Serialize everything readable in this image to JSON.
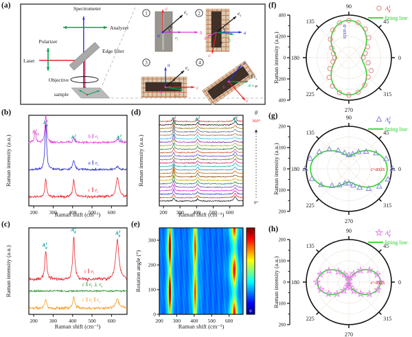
{
  "figure": {
    "panel_labels": {
      "a": "(a)",
      "b": "(b)",
      "c": "(c)",
      "d": "(d)",
      "e": "(e)",
      "f": "(f)",
      "g": "(g)",
      "h": "(h)"
    }
  },
  "axes_text": {
    "raman_shift": "Raman shift (cm⁻¹)",
    "raman_intensity": "Raman intensity (a.u.)",
    "rotation_angle": "Rotation angle (°)"
  },
  "panel_a": {
    "labels": {
      "spectrometer": "Spectrometer",
      "analyzer": "Analyzer",
      "polarizer": "Polarizer",
      "laser": "Laser",
      "edge_filter": "Edge filter",
      "objective": "Objective",
      "sample": "sample"
    },
    "inset_numbers": [
      "1",
      "2",
      "3",
      "4"
    ],
    "symbols": {
      "a": "a",
      "b": "b",
      "c": "c",
      "e": "e",
      "i": "i",
      "s": "s",
      "phi": "φ",
      "theta": "θ",
      "parallel": "∥",
      "equals": "="
    },
    "axis_colors": {
      "a": "#2a2ae0",
      "b": "#e236d8",
      "c": "#ee2222",
      "ei": "#00a551",
      "es": "#111111"
    }
  },
  "chart_data": [
    {
      "id": "b",
      "type": "line",
      "xlabel": "Raman shift (cm⁻¹)",
      "ylabel": "Raman intensity (a.u.)",
      "xlim": [
        175,
        680
      ],
      "xticks": [
        200,
        300,
        400,
        500,
        600
      ],
      "peak_labels": [
        {
          "x": 207,
          "y": 0.8,
          "color": "#e857c8",
          "segs": [
            {
              "t": "B",
              "i": 1
            },
            {
              "sup": "1",
              "sub": "3g"
            }
          ]
        },
        {
          "x": 262,
          "y": 0.9,
          "color": "#009393",
          "segs": [
            {
              "t": "A",
              "i": 1
            },
            {
              "sup": "1",
              "sub": "g"
            }
          ]
        },
        {
          "x": 406,
          "y": 0.74,
          "color": "#009393",
          "segs": [
            {
              "t": "A",
              "i": 1
            },
            {
              "sup": "2",
              "sub": "g"
            }
          ]
        },
        {
          "x": 640,
          "y": 0.74,
          "color": "#009393",
          "segs": [
            {
              "t": "A",
              "i": 1
            },
            {
              "sup": "3",
              "sub": "g"
            }
          ]
        }
      ],
      "series": [
        {
          "color": "#e8262a",
          "baseline": 0.1,
          "noise": 0.016,
          "peaks": [
            [
              262,
              0.2,
              5
            ],
            [
              406,
              0.18,
              6
            ],
            [
              631,
              0.21,
              9
            ]
          ],
          "label": {
            "x": 480,
            "dy": 0.06,
            "segs": [
              {
                "t": "c",
                "i": 1
              },
              {
                "t": " ∥ "
              },
              {
                "t": "e",
                "i": 1
              },
              {
                "t": "i",
                "pos": "sub",
                "i": 1
              }
            ]
          }
        },
        {
          "color": "#2a2ad0",
          "baseline": 0.4,
          "noise": 0.014,
          "peaks": [
            [
              262,
              0.52,
              5
            ],
            [
              406,
              0.1,
              6
            ],
            [
              631,
              0.03,
              9
            ]
          ],
          "label": {
            "x": 480,
            "dy": 0.06,
            "segs": [
              {
                "t": "a",
                "i": 1
              },
              {
                "t": " ∥ "
              },
              {
                "t": "e",
                "i": 1
              },
              {
                "t": "i",
                "pos": "sub",
                "i": 1
              }
            ]
          }
        },
        {
          "color": "#e236d8",
          "baseline": 0.7,
          "noise": 0.016,
          "peaks": [
            [
              207,
              0.13,
              4
            ],
            [
              262,
              0.31,
              5
            ],
            [
              406,
              0.05,
              6
            ],
            [
              631,
              0.04,
              9
            ]
          ],
          "label": {
            "x": 480,
            "dy": 0.05,
            "segs": [
              {
                "t": "b",
                "i": 1
              },
              {
                "t": " ∥ "
              },
              {
                "t": "e",
                "i": 1
              },
              {
                "t": "i",
                "pos": "sub",
                "i": 1
              }
            ]
          }
        }
      ]
    },
    {
      "id": "c",
      "type": "line",
      "xlabel": "Raman shift (cm⁻¹)",
      "ylabel": "Raman intensity (a.u.)",
      "xlim": [
        175,
        680
      ],
      "xticks": [
        200,
        300,
        400,
        500,
        600
      ],
      "peak_labels": [
        {
          "x": 258,
          "y": 0.78,
          "color": "#009393",
          "segs": [
            {
              "t": "A",
              "i": 1
            },
            {
              "sup": "1",
              "sub": "g"
            }
          ]
        },
        {
          "x": 406,
          "y": 0.96,
          "color": "#009393",
          "segs": [
            {
              "t": "A",
              "i": 1
            },
            {
              "sup": "2",
              "sub": "g"
            }
          ]
        },
        {
          "x": 634,
          "y": 0.92,
          "color": "#009393",
          "segs": [
            {
              "t": "A",
              "i": 1
            },
            {
              "sup": "3",
              "sub": "g"
            }
          ]
        }
      ],
      "series": [
        {
          "color": "#f59a23",
          "baseline": 0.07,
          "noise": 0.022,
          "peaks": [
            [
              262,
              0.1,
              6
            ],
            [
              406,
              0.13,
              6
            ],
            [
              630,
              0.11,
              10
            ]
          ],
          "label": {
            "x": 450,
            "dy": 0.08,
            "segs": [
              {
                "t": "c",
                "i": 1
              },
              {
                "t": " ∥ "
              },
              {
                "t": "e",
                "i": 1
              },
              {
                "t": "i",
                "pos": "sub",
                "i": 1
              },
              {
                "t": " ∥ "
              },
              {
                "t": "e",
                "i": 1
              },
              {
                "t": "s",
                "pos": "sub",
                "i": 1
              }
            ]
          }
        },
        {
          "color": "#1e8c1e",
          "baseline": 0.27,
          "noise": 0.012,
          "peaks": [],
          "label": {
            "x": 450,
            "dy": 0.06,
            "segs": [
              {
                "t": "c",
                "i": 1
              },
              {
                "t": " ∥ "
              },
              {
                "t": "e",
                "i": 1
              },
              {
                "t": "i",
                "pos": "sub",
                "i": 1
              },
              {
                "t": " ⊥ "
              },
              {
                "t": "e",
                "i": 1
              },
              {
                "t": "s",
                "pos": "sub",
                "i": 1
              }
            ]
          }
        },
        {
          "color": "#e8262a",
          "baseline": 0.4,
          "noise": 0.024,
          "peaks": [
            [
              262,
              0.34,
              6
            ],
            [
              406,
              0.5,
              6
            ],
            [
              630,
              0.46,
              10
            ]
          ],
          "label": {
            "x": 460,
            "dy": 0.08,
            "segs": [
              {
                "t": "c",
                "i": 1
              },
              {
                "t": " ∥ "
              },
              {
                "t": "e",
                "i": 1
              },
              {
                "t": "i",
                "pos": "sub",
                "i": 1
              }
            ]
          }
        }
      ]
    },
    {
      "id": "d",
      "type": "stack",
      "xlabel": "Raman shift (cm⁻¹)",
      "ylabel": "Raman intensity (a.u.)",
      "xlim": [
        175,
        680
      ],
      "xticks": [
        200,
        300,
        400,
        500,
        600
      ],
      "theta": {
        "sym": "θ",
        "top": "360°",
        "bottom": "0°"
      },
      "peak_labels": [
        {
          "x": 262,
          "color": "#009393",
          "segs": [
            {
              "t": "A",
              "i": 1
            },
            {
              "sup": "1",
              "sub": "g"
            }
          ]
        },
        {
          "x": 406,
          "color": "#009393",
          "segs": [
            {
              "t": "A",
              "i": 1
            },
            {
              "sup": "2",
              "sub": "g"
            }
          ]
        },
        {
          "x": 632,
          "color": "#009393",
          "segs": [
            {
              "t": "A",
              "i": 1
            },
            {
              "sup": "3",
              "sub": "g"
            }
          ]
        }
      ],
      "peaks_x": [
        262,
        406,
        632
      ],
      "peak_w": [
        5,
        6,
        9
      ],
      "colors": [
        "#000000",
        "#e3201f",
        "#2233cc",
        "#cc22cc",
        "#8833bb",
        "#118833",
        "#ccaa00",
        "#884411",
        "#cc6600",
        "#2288cc",
        "#22aaaa",
        "#bb2266",
        "#667700",
        "#5544dd",
        "#cc4422",
        "#227744",
        "#99aa22",
        "#7722aa",
        "#33bbee",
        "#aa6644",
        "#556688",
        "#997700",
        "#000000",
        "#e3201f"
      ],
      "heights": [
        [
          1.0,
          0.65,
          1.25
        ],
        [
          1.1,
          0.68,
          1.2
        ],
        [
          1.38,
          0.76,
          1.06
        ],
        [
          1.75,
          0.88,
          0.88
        ],
        [
          2.13,
          0.99,
          0.69
        ],
        [
          2.4,
          1.07,
          0.55
        ],
        [
          2.5,
          1.1,
          0.5
        ],
        [
          2.4,
          1.07,
          0.55
        ],
        [
          2.13,
          0.99,
          0.69
        ],
        [
          1.75,
          0.88,
          0.88
        ],
        [
          1.38,
          0.76,
          1.06
        ],
        [
          1.1,
          0.68,
          1.2
        ],
        [
          1.0,
          0.65,
          1.25
        ],
        [
          1.1,
          0.68,
          1.2
        ],
        [
          1.38,
          0.76,
          1.06
        ],
        [
          1.75,
          0.88,
          0.88
        ],
        [
          2.13,
          0.99,
          0.69
        ],
        [
          2.4,
          1.07,
          0.55
        ],
        [
          2.5,
          1.1,
          0.5
        ],
        [
          2.4,
          1.07,
          0.55
        ],
        [
          2.13,
          0.99,
          0.69
        ],
        [
          1.75,
          0.88,
          0.88
        ],
        [
          1.38,
          0.76,
          1.06
        ],
        [
          1.1,
          0.68,
          1.2
        ]
      ]
    },
    {
      "id": "e",
      "type": "heatmap",
      "xlabel": "Raman shift (cm⁻¹)",
      "ylabel": "Rotation angle (°)",
      "xlim": [
        200,
        680
      ],
      "xticks": [
        200,
        300,
        400,
        500,
        600
      ],
      "ylim": [
        0,
        350
      ],
      "yticks": [
        0,
        100,
        200,
        300
      ],
      "colorbar": {
        "max": "1",
        "min": "0"
      },
      "background": 0.22,
      "bands": [
        {
          "center": 260,
          "width": 7,
          "base": 0.5,
          "amp": 0.45,
          "mod": "sin2"
        },
        {
          "center": 405,
          "width": 9,
          "base": 0.42,
          "amp": 0.2,
          "mod": "sin2"
        },
        {
          "center": 630,
          "width": 13,
          "base": 0.26,
          "amp": 0.42,
          "mod": "cos2"
        }
      ]
    },
    {
      "id": "f",
      "type": "polar",
      "marker": "circle",
      "marker_color": "#e88b8b",
      "series_label": {
        "color": "#e8262a",
        "segs": [
          {
            "t": "A",
            "i": 1
          },
          {
            "sup": "1",
            "sub": "g"
          }
        ]
      },
      "legend_line": "fitting line",
      "line_color": "#2ad42a",
      "rmax": 400,
      "rticks": [
        "400",
        "200",
        "0",
        "200",
        "400"
      ],
      "angle_labels": [
        "0",
        "45",
        "90",
        "135",
        "180",
        "225",
        "270",
        "315"
      ],
      "ylabel": "Raman intensity (a.u.)",
      "inside_label": {
        "base": "a",
        "rest": "-axis",
        "color": "#3c3ccd",
        "vertical": true
      },
      "fit": {
        "c0": 120,
        "c1": 230,
        "mod": "sin2"
      },
      "angle_step": 15,
      "values": [
        135,
        160,
        205,
        265,
        310,
        338,
        350,
        338,
        300,
        245,
        185,
        150,
        132,
        155,
        205,
        262,
        308,
        340,
        352,
        336,
        298,
        258,
        242,
        188
      ]
    },
    {
      "id": "g",
      "type": "polar",
      "marker": "triangle",
      "marker_color": "#8c8cd8",
      "series_label": {
        "color": "#3a3ad0",
        "segs": [
          {
            "t": "A",
            "i": 1
          },
          {
            "sup": "2",
            "sub": "g"
          }
        ]
      },
      "legend_line": "fitting line",
      "line_color": "#2ad42a",
      "rmax": 200,
      "rticks": [
        "200",
        "100",
        "0",
        "100",
        "200"
      ],
      "angle_labels": [
        "0",
        "45",
        "90",
        "135",
        "180",
        "225",
        "270",
        "315"
      ],
      "ylabel": "Raman intensity (a.u.)",
      "inside_label": {
        "base": "c",
        "rest": "-axis",
        "color": "#dd2222",
        "vertical": false
      },
      "fit": {
        "c0": 62,
        "c1": 118,
        "mod": "cos2"
      },
      "angle_step": 15,
      "values": [
        205,
        182,
        148,
        115,
        92,
        72,
        65,
        78,
        100,
        130,
        160,
        188,
        205,
        180,
        150,
        112,
        88,
        70,
        68,
        80,
        102,
        132,
        165,
        190
      ]
    },
    {
      "id": "h",
      "type": "polar",
      "marker": "star",
      "marker_color": "#ee82ee",
      "series_label": {
        "color": "#cc33cc",
        "segs": [
          {
            "t": "A",
            "i": 1
          },
          {
            "sup": "3",
            "sub": "g"
          }
        ]
      },
      "legend_line": "fitting line",
      "line_color": "#2ad42a",
      "rmax": 200,
      "rticks": [
        "200",
        "100",
        "0",
        "100",
        "200"
      ],
      "angle_labels": [
        "0",
        "45",
        "90",
        "135",
        "180",
        "225",
        "270",
        "315"
      ],
      "ylabel": "Raman intensity (a.u.)",
      "inside_label": {
        "base": "c",
        "rest": "-axis",
        "color": "#dd2222",
        "vertical": false
      },
      "fit": {
        "c0": 6,
        "c1": 142,
        "mod": "cos2"
      },
      "angle_step": 15,
      "values": [
        148,
        138,
        112,
        78,
        45,
        22,
        8,
        20,
        42,
        70,
        108,
        138,
        150,
        136,
        110,
        78,
        46,
        20,
        10,
        24,
        48,
        78,
        112,
        140
      ]
    }
  ]
}
